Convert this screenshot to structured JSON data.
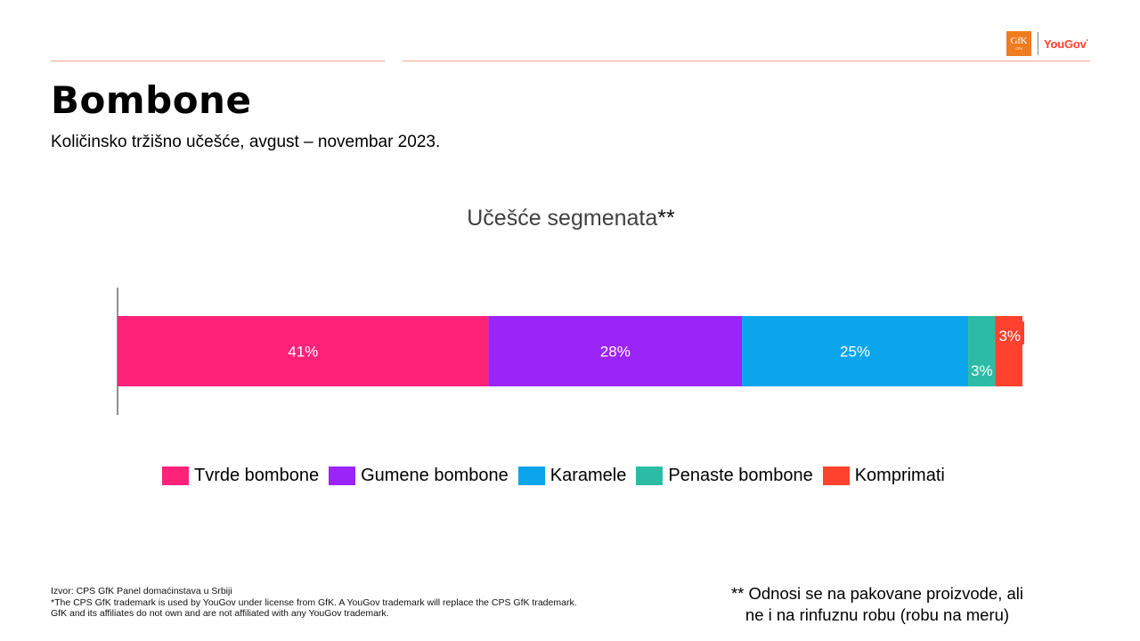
{
  "header": {
    "logo_gfk": "GfK",
    "logo_gfk_sub": "CPS",
    "logo_yougov": "YouGov"
  },
  "page": {
    "title": "Bombone",
    "subtitle": "Količinsko tržišno učešće, avgust – novembar 2023."
  },
  "chart_data": {
    "type": "bar",
    "orientation": "horizontal",
    "stacked": true,
    "title": "Učešće segmenata",
    "title_suffix": "**",
    "categories": [
      ""
    ],
    "series": [
      {
        "name": "Tvrde bombone",
        "values": [
          41
        ],
        "label": "41%",
        "color": "#ff2279"
      },
      {
        "name": "Gumene bombone",
        "values": [
          28
        ],
        "label": "28%",
        "color": "#9b24f9"
      },
      {
        "name": "Karamele",
        "values": [
          25
        ],
        "label": "25%",
        "color": "#0ba5ec"
      },
      {
        "name": "Penaste bombone",
        "values": [
          3
        ],
        "label": "3%",
        "color": "#2cbba4"
      },
      {
        "name": "Komprimati",
        "values": [
          3
        ],
        "label": "3%",
        "color": "#ff422e"
      }
    ],
    "legend_position": "bottom",
    "grid": false
  },
  "footer": {
    "source_lines": [
      "Izvor: CPS GfK Panel domaćinstava u Srbiji",
      "*The CPS GfK trademark is used by YouGov under license from GfK. A YouGov trademark will replace the CPS GfK trademark.",
      "GfK and its affiliates do not own and are not affiliated with any YouGov trademark."
    ],
    "note_lines": [
      "** Odnosi se na pakovane proizvode, ali",
      "ne i na rinfuznu robu (robu na meru)"
    ]
  }
}
